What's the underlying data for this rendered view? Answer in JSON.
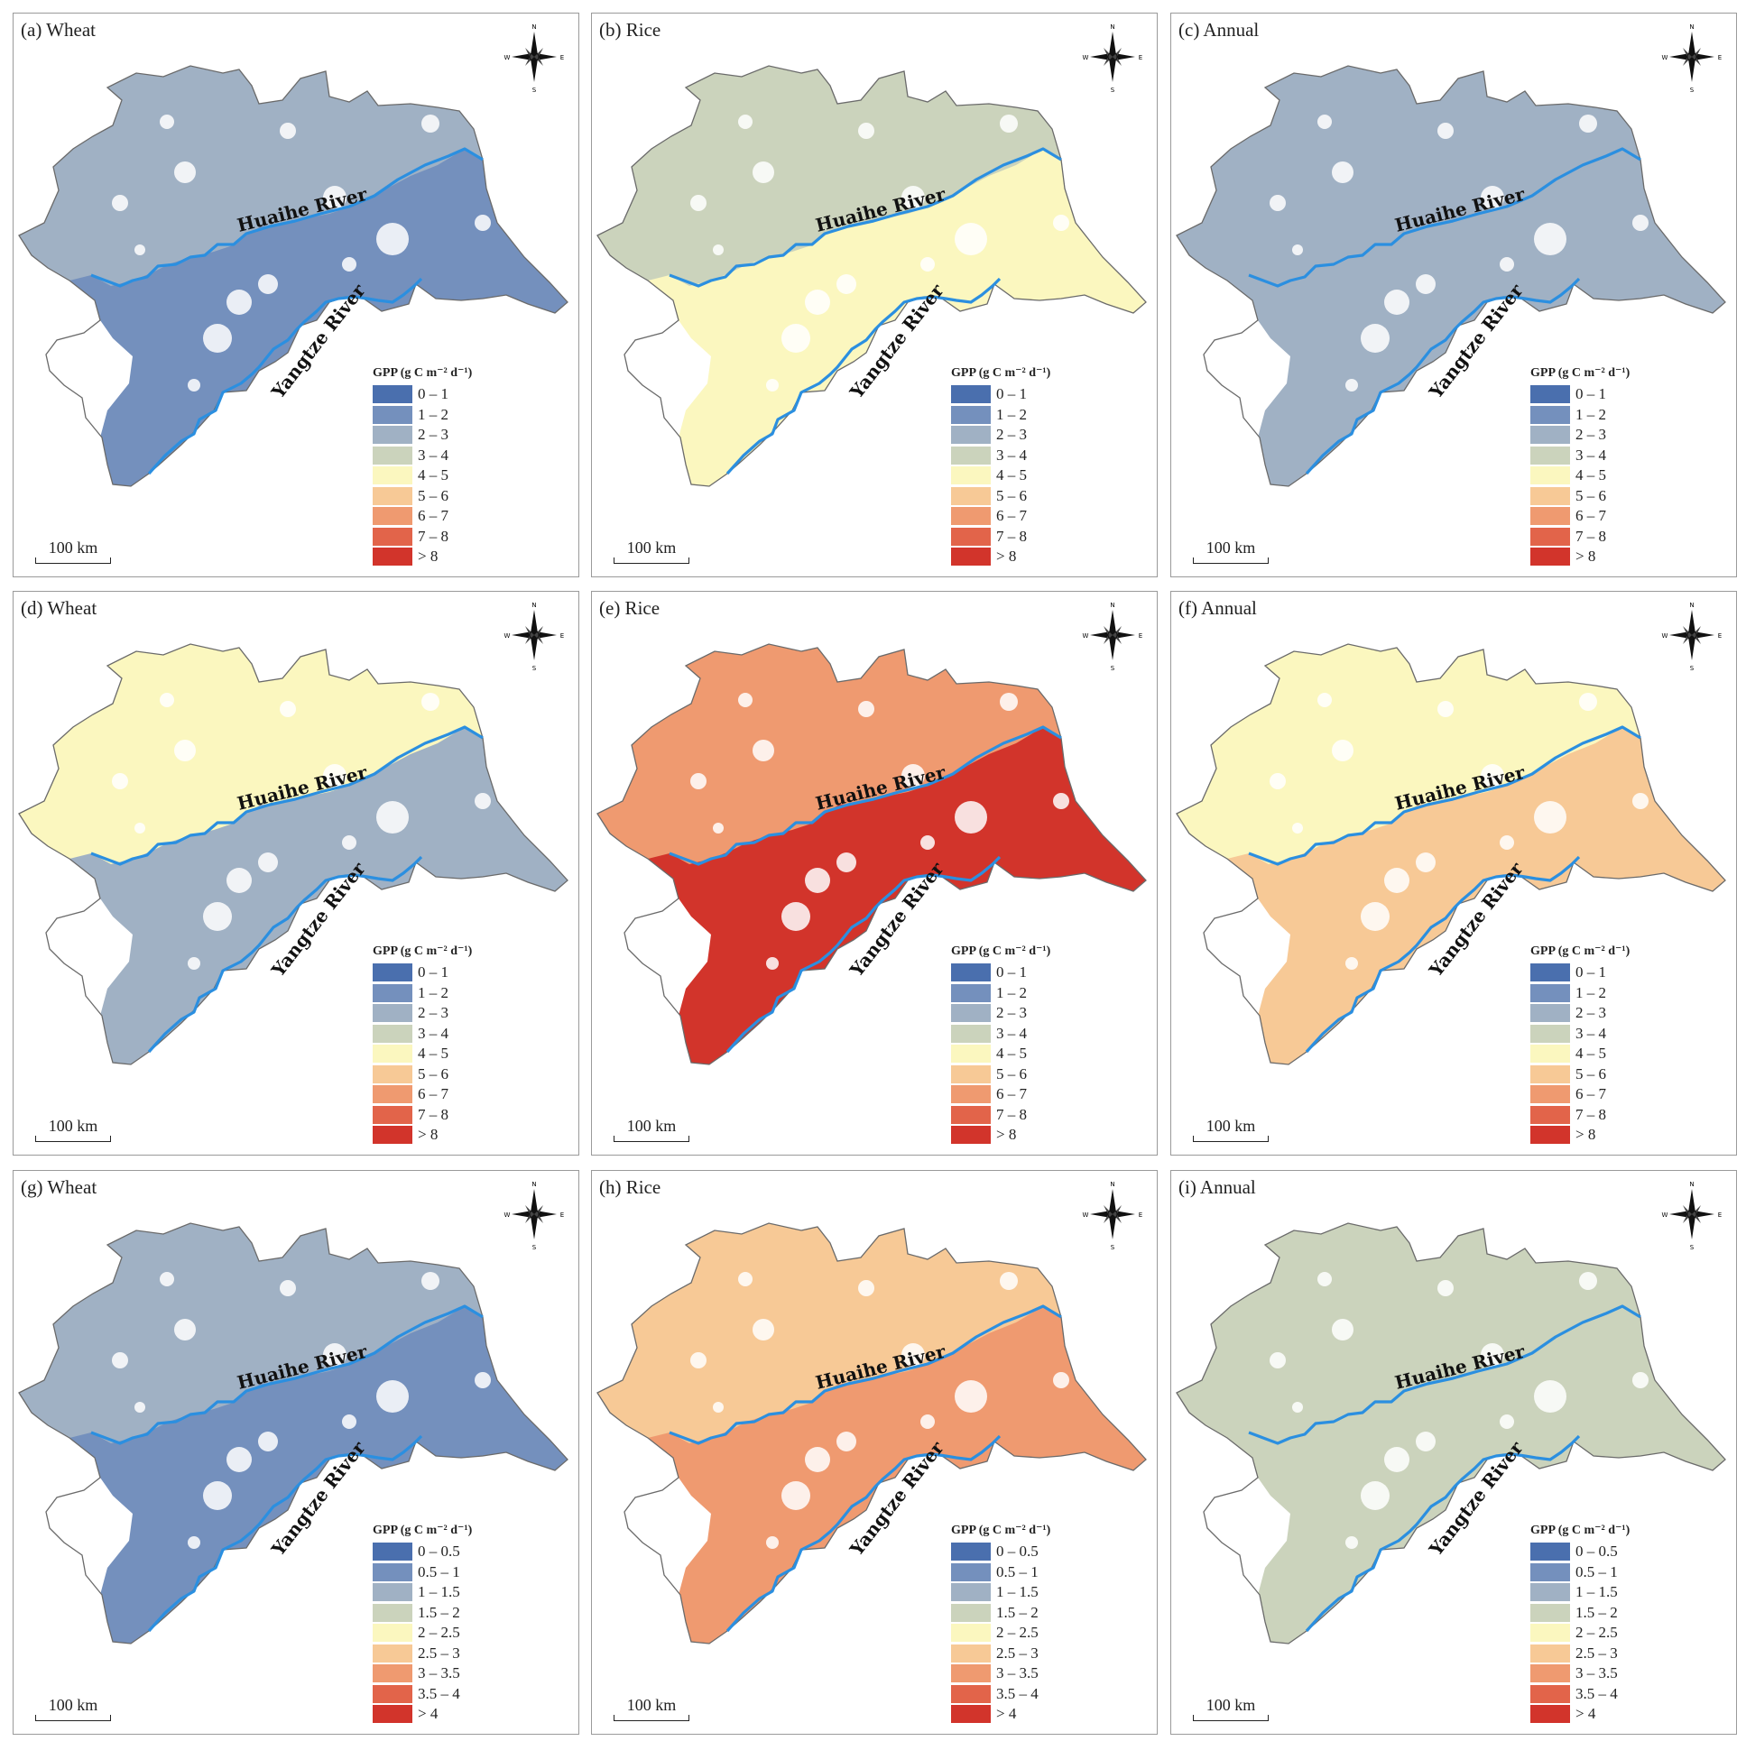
{
  "legend_title": "GPP (g C m⁻² d⁻¹)",
  "scale_bar": "100 km",
  "rivers": {
    "huaihe": "Huaihe River",
    "yangtze": "Yangtze River"
  },
  "compass": {
    "n": "N",
    "s": "S",
    "e": "E",
    "w": "W"
  },
  "colors": [
    "#4a6fae",
    "#7490bd",
    "#a0b1c4",
    "#cbd3bc",
    "#fbf7bf",
    "#f7c996",
    "#ef9a70",
    "#e2644a",
    "#d2342b"
  ],
  "legend_ranges_a": [
    "0 – 1",
    "1 – 2",
    "2 – 3",
    "3 – 4",
    "4 – 5",
    "5 – 6",
    "6 – 7",
    "7 – 8",
    "> 8"
  ],
  "legend_ranges_b": [
    "0 – 0.5",
    "0.5 – 1",
    "1 – 1.5",
    "1.5 – 2",
    "2 – 2.5",
    "2.5 – 3",
    "3 – 3.5",
    "3.5 – 4",
    "> 4"
  ],
  "panels": [
    {
      "title": "(a) Wheat",
      "legend": "a",
      "class_north": 2,
      "class_south": 1
    },
    {
      "title": "(b) Rice",
      "legend": "a",
      "class_north": 3,
      "class_south": 4
    },
    {
      "title": "(c) Annual",
      "legend": "a",
      "class_north": 2,
      "class_south": 2
    },
    {
      "title": "(d) Wheat",
      "legend": "a",
      "class_north": 4,
      "class_south": 2
    },
    {
      "title": "(e) Rice",
      "legend": "a",
      "class_north": 6,
      "class_south": 8
    },
    {
      "title": "(f) Annual",
      "legend": "a",
      "class_north": 4,
      "class_south": 5
    },
    {
      "title": "(g) Wheat",
      "legend": "b",
      "class_north": 2,
      "class_south": 1
    },
    {
      "title": "(h) Rice",
      "legend": "b",
      "class_north": 5,
      "class_south": 6
    },
    {
      "title": "(i) Annual",
      "legend": "b",
      "class_north": 3,
      "class_south": 3
    }
  ]
}
